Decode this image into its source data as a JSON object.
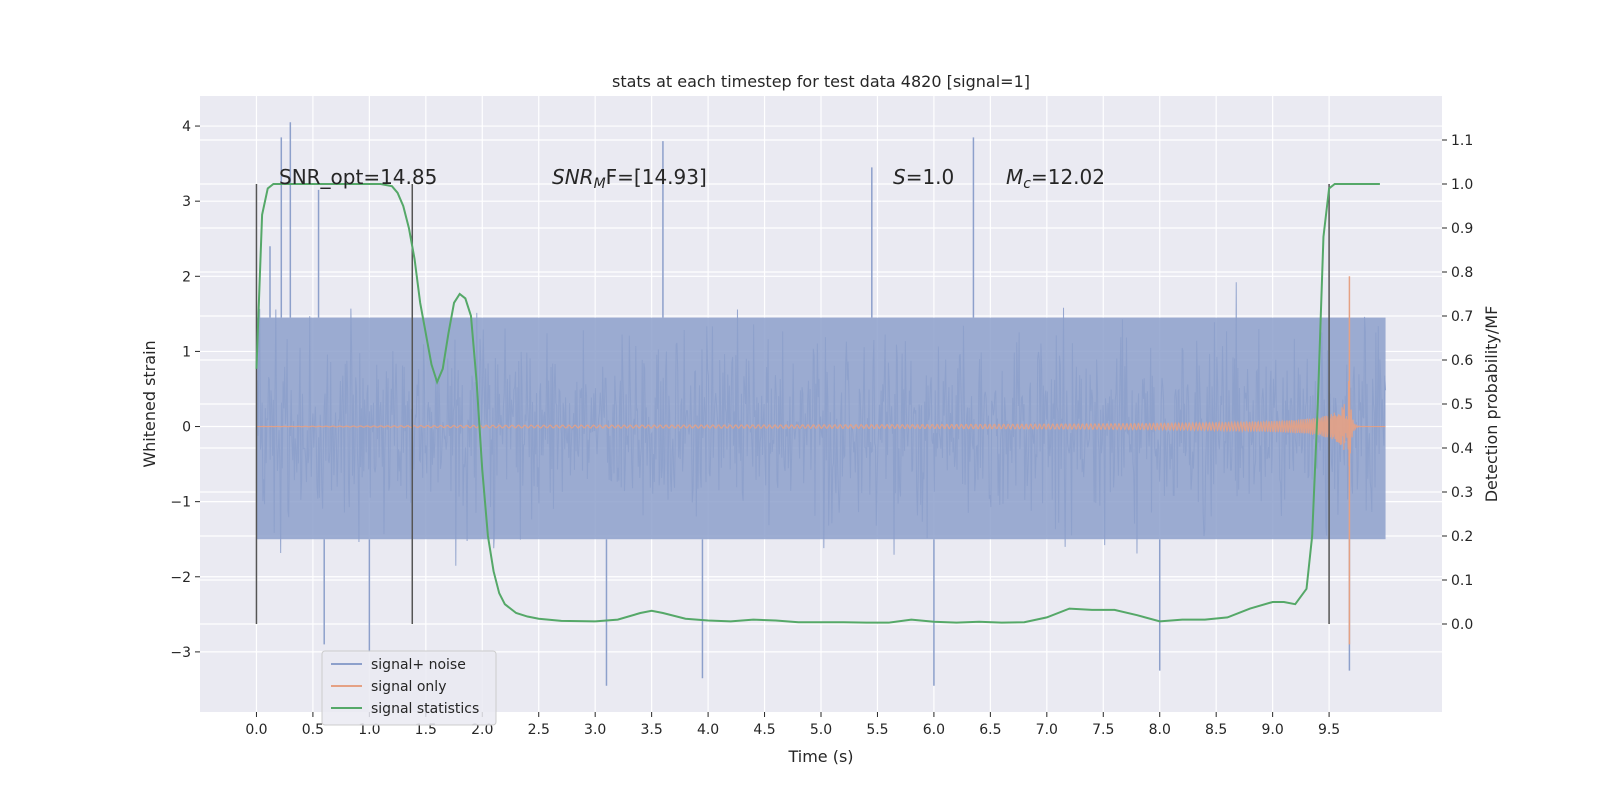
{
  "chart_data": {
    "type": "line",
    "title": "stats at each timestep for test data 4820 [signal=1]",
    "xlabel": "Time (s)",
    "ylabel": "Whitened strain",
    "y2label": "Detection probability/MF",
    "xlim": [
      -0.5,
      10.5
    ],
    "ylim": [
      -3.8,
      4.4
    ],
    "y2lim": [
      -0.2,
      1.2
    ],
    "x_ticks": [
      0.0,
      0.5,
      1.0,
      1.5,
      2.0,
      2.5,
      3.0,
      3.5,
      4.0,
      4.5,
      5.0,
      5.5,
      6.0,
      6.5,
      7.0,
      7.5,
      8.0,
      8.5,
      9.0,
      9.5
    ],
    "x_tick_labels": [
      "0.0",
      "0.5",
      "1.0",
      "1.5",
      "2.0",
      "2.5",
      "3.0",
      "3.5",
      "4.0",
      "4.5",
      "5.0",
      "5.5",
      "6.0",
      "6.5",
      "7.0",
      "7.5",
      "8.0",
      "8.5",
      "9.0",
      "9.5"
    ],
    "y_ticks": [
      4,
      3,
      2,
      1,
      0,
      -1,
      -2,
      -3
    ],
    "y_tick_labels": [
      "4",
      "3",
      "2",
      "1",
      "0",
      "−1",
      "−2",
      "−3"
    ],
    "y2_ticks": [
      1.1,
      1.0,
      0.9,
      0.8,
      0.7,
      0.6,
      0.5,
      0.4,
      0.3,
      0.2,
      0.1,
      0.0
    ],
    "y2_tick_labels": [
      "1.1",
      "1.0",
      "0.9",
      "0.8",
      "0.7",
      "0.6",
      "0.5",
      "0.4",
      "0.3",
      "0.2",
      "0.1",
      "0.0"
    ],
    "grid": true,
    "legend_position": "lower-left",
    "annotations": {
      "snr_opt": "SNR_opt=14.85",
      "snr_mf_main": "SNR",
      "snr_mf_sub": "M",
      "snr_mf_rest": "F=[14.93]",
      "s_main": "S",
      "s_rest": "=1.0",
      "mc_main": "M",
      "mc_sub": "c",
      "mc_rest": "=12.02"
    },
    "vertical_markers": [
      0.0,
      1.38,
      9.5
    ],
    "series": [
      {
        "name": "signal+ noise",
        "color": "#8da0cb",
        "kind": "noise",
        "x_range": [
          0.0,
          10.0
        ],
        "band_ymin": -1.5,
        "band_ymax": 1.45,
        "peak_values": [
          {
            "x": 0.12,
            "y": 2.4
          },
          {
            "x": 0.22,
            "y": 3.85
          },
          {
            "x": 0.3,
            "y": 4.05
          },
          {
            "x": 0.55,
            "y": 3.15
          },
          {
            "x": 3.6,
            "y": 3.8
          },
          {
            "x": 6.35,
            "y": 3.85
          },
          {
            "x": 5.45,
            "y": 3.45
          },
          {
            "x": 3.1,
            "y": -3.45
          },
          {
            "x": 3.95,
            "y": -3.35
          },
          {
            "x": 6.0,
            "y": -3.45
          },
          {
            "x": 8.0,
            "y": -3.25
          },
          {
            "x": 9.68,
            "y": -3.25
          },
          {
            "x": 1.0,
            "y": -3.0
          },
          {
            "x": 0.6,
            "y": -2.9
          }
        ],
        "envelope_max": 2.2,
        "envelope_min": -2.2
      },
      {
        "name": "signal only",
        "color": "#e5a184",
        "kind": "chirp",
        "x_range": [
          0.0,
          10.0
        ],
        "merger_time": 9.68,
        "peak_amplitude": 2.0,
        "min_value": -2.9
      },
      {
        "name": "signal statistics",
        "color": "#55a868",
        "axis": "y2",
        "x": [
          0.0,
          0.05,
          0.1,
          0.15,
          0.25,
          0.4,
          0.6,
          0.8,
          1.0,
          1.1,
          1.2,
          1.25,
          1.3,
          1.35,
          1.4,
          1.45,
          1.5,
          1.55,
          1.6,
          1.65,
          1.7,
          1.75,
          1.8,
          1.85,
          1.9,
          1.95,
          2.0,
          2.05,
          2.1,
          2.15,
          2.2,
          2.3,
          2.4,
          2.5,
          2.7,
          3.0,
          3.2,
          3.4,
          3.5,
          3.6,
          3.8,
          4.0,
          4.2,
          4.4,
          4.6,
          4.8,
          5.0,
          5.2,
          5.4,
          5.6,
          5.8,
          6.0,
          6.2,
          6.4,
          6.6,
          6.8,
          7.0,
          7.2,
          7.4,
          7.6,
          7.8,
          8.0,
          8.2,
          8.4,
          8.6,
          8.8,
          9.0,
          9.1,
          9.2,
          9.3,
          9.35,
          9.4,
          9.45,
          9.5,
          9.55,
          9.6,
          9.7,
          9.8,
          9.9,
          9.95
        ],
        "y": [
          0.58,
          0.93,
          0.99,
          1.0,
          1.0,
          1.0,
          1.0,
          1.0,
          1.0,
          1.0,
          0.995,
          0.98,
          0.95,
          0.9,
          0.83,
          0.73,
          0.66,
          0.59,
          0.55,
          0.58,
          0.66,
          0.73,
          0.75,
          0.74,
          0.7,
          0.55,
          0.35,
          0.2,
          0.12,
          0.07,
          0.045,
          0.025,
          0.017,
          0.012,
          0.007,
          0.006,
          0.01,
          0.025,
          0.03,
          0.025,
          0.012,
          0.008,
          0.006,
          0.01,
          0.008,
          0.004,
          0.004,
          0.004,
          0.003,
          0.003,
          0.01,
          0.005,
          0.003,
          0.005,
          0.003,
          0.004,
          0.015,
          0.035,
          0.032,
          0.032,
          0.02,
          0.006,
          0.01,
          0.01,
          0.015,
          0.035,
          0.05,
          0.05,
          0.045,
          0.08,
          0.2,
          0.5,
          0.88,
          0.99,
          1.0,
          1.0,
          1.0,
          1.0,
          1.0,
          1.0
        ]
      }
    ]
  }
}
